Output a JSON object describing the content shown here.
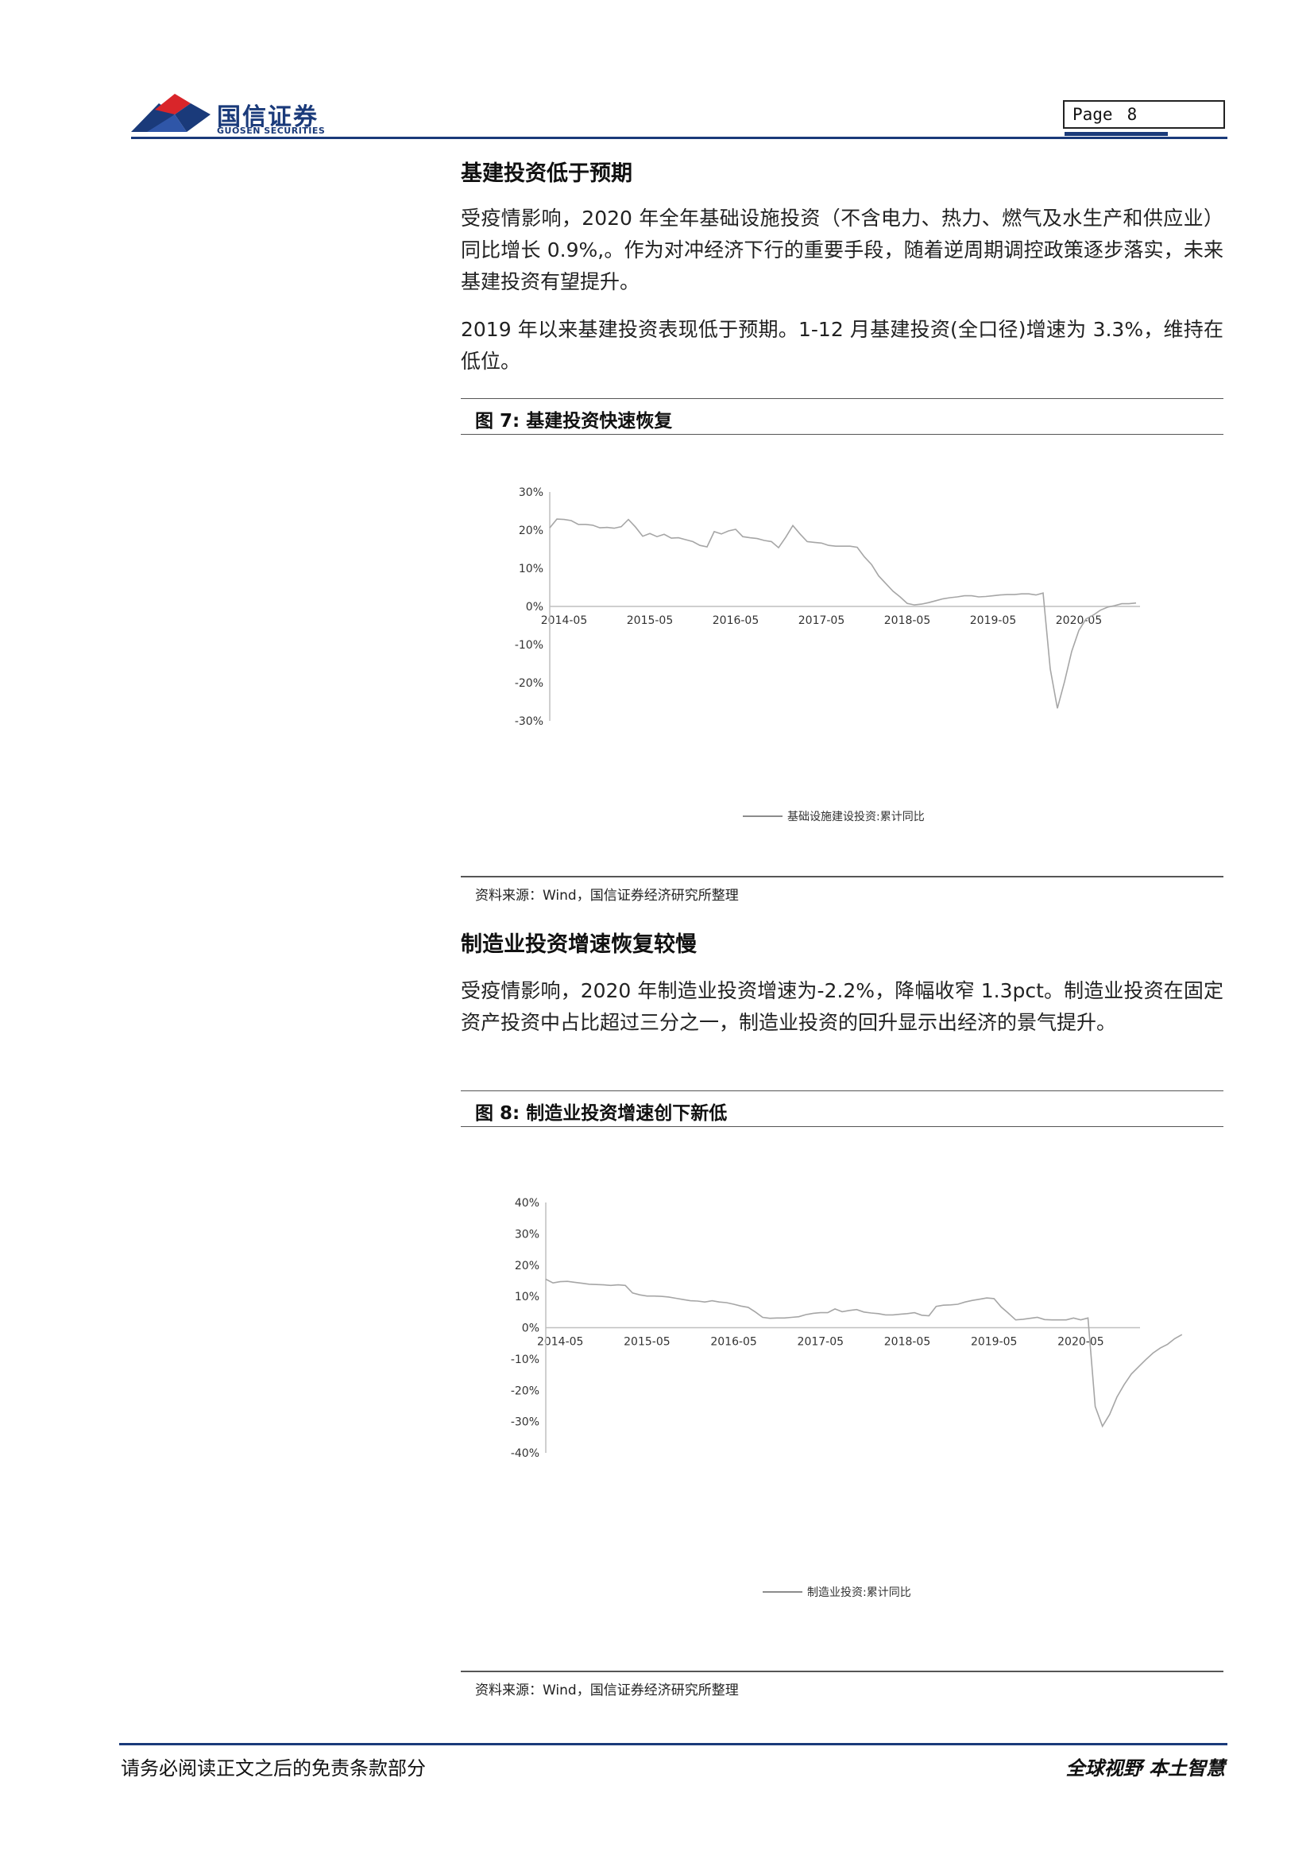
{
  "header": {
    "logo_cn": "国信证券",
    "logo_en": "GUOSEN SECURITIES",
    "page_label": "Page",
    "page_number": "8",
    "colors": {
      "brand_blue": "#1a3a7a",
      "brand_red": "#d9252a"
    }
  },
  "section1": {
    "heading": "基建投资低于预期",
    "para1": "受疫情影响，2020 年全年基础设施投资（不含电力、热力、燃气及水生产和供应业）同比增长 0.9%,。作为对冲经济下行的重要手段，随着逆周期调控政策逐步落实，未来基建投资有望提升。",
    "para2": "2019 年以来基建投资表现低于预期。1-12 月基建投资(全口径)增速为 3.3%，维持在低位。"
  },
  "figure7": {
    "title": "图 7:  基建投资快速恢复",
    "source": "资料来源：Wind，国信证券经济研究所整理"
  },
  "section2": {
    "heading": "制造业投资增速恢复较慢",
    "para1": "受疫情影响，2020 年制造业投资增速为-2.2%，降幅收窄 1.3pct。制造业投资在固定资产投资中占比超过三分之一，制造业投资的回升显示出经济的景气提升。"
  },
  "figure8": {
    "title": "图 8:  制造业投资增速创下新低",
    "source": "资料来源：Wind，国信证券经济研究所整理"
  },
  "footer": {
    "left": "请务必阅读正文之后的免责条款部分",
    "right": "全球视野   本土智慧"
  },
  "chart_data": [
    {
      "type": "line",
      "ylim": [
        -30,
        30
      ],
      "yticks": [
        "30%",
        "20%",
        "10%",
        "0%",
        "-10%",
        "-20%",
        "-30%"
      ],
      "ytick_values": [
        30,
        20,
        10,
        0,
        -10,
        -20,
        -30
      ],
      "xticks": [
        "2014-05",
        "2015-05",
        "2016-05",
        "2017-05",
        "2018-05",
        "2019-05",
        "2020-05"
      ],
      "x_start": "2014-03",
      "legend_position": "bottom-right",
      "series": [
        {
          "name": "基础设施建设投资:累计同比",
          "color": "#a6a6a6",
          "values": [
            20.6,
            22.9,
            22.8,
            22.5,
            21.5,
            21.5,
            21.3,
            20.6,
            20.7,
            20.5,
            20.9,
            22.8,
            20.8,
            18.4,
            19.1,
            18.3,
            18.9,
            17.9,
            18.0,
            17.5,
            17.0,
            16.0,
            15.6,
            19.6,
            19.0,
            19.8,
            20.2,
            18.3,
            18.0,
            17.8,
            17.3,
            17.0,
            15.4,
            18.1,
            21.2,
            19.0,
            17.0,
            16.8,
            16.6,
            16.0,
            15.8,
            15.8,
            15.8,
            15.5,
            13.0,
            11.0,
            8.0,
            6.0,
            4.0,
            2.5,
            0.8,
            0.4,
            0.6,
            1.0,
            1.5,
            2.0,
            2.3,
            2.5,
            2.8,
            2.8,
            2.5,
            2.6,
            2.8,
            3.0,
            3.1,
            3.1,
            3.3,
            3.3,
            3.0,
            3.5,
            -16.4,
            -26.7,
            -19.7,
            -11.8,
            -6.3,
            -3.3,
            -2.3,
            -1.0,
            -0.2,
            0.2,
            0.7,
            0.7,
            0.9
          ]
        }
      ]
    },
    {
      "type": "line",
      "ylim": [
        -40,
        40
      ],
      "yticks": [
        "40%",
        "30%",
        "20%",
        "10%",
        "0%",
        "-10%",
        "-20%",
        "-30%",
        "-40%"
      ],
      "ytick_values": [
        40,
        30,
        20,
        10,
        0,
        -10,
        -20,
        -30,
        -40
      ],
      "xticks": [
        "2014-05",
        "2015-05",
        "2016-05",
        "2017-05",
        "2018-05",
        "2019-05",
        "2020-05"
      ],
      "x_start": "2014-03",
      "legend_position": "bottom-center",
      "series": [
        {
          "name": "制造业投资:累计同比",
          "color": "#a6a6a6",
          "values": [
            15.5,
            14.3,
            14.7,
            14.8,
            14.5,
            14.2,
            13.9,
            13.8,
            13.7,
            13.5,
            13.7,
            13.5,
            11.1,
            10.5,
            10.1,
            10.1,
            10.0,
            9.8,
            9.4,
            9.0,
            8.6,
            8.5,
            8.2,
            8.6,
            8.2,
            8.0,
            7.5,
            6.9,
            6.5,
            5.0,
            3.3,
            3.0,
            3.1,
            3.1,
            3.3,
            3.5,
            4.2,
            4.6,
            4.8,
            4.8,
            6.0,
            5.1,
            5.5,
            5.8,
            5.0,
            4.7,
            4.5,
            4.1,
            4.1,
            4.3,
            4.5,
            4.8,
            4.0,
            3.8,
            6.8,
            7.2,
            7.3,
            7.5,
            8.2,
            8.7,
            9.1,
            9.5,
            9.3,
            6.6,
            4.6,
            2.5,
            2.7,
            3.0,
            3.3,
            2.6,
            2.5,
            2.5,
            2.5,
            3.1,
            2.5,
            3.1,
            -25.2,
            -31.5,
            -27.7,
            -22.2,
            -18.2,
            -14.8,
            -12.5,
            -10.2,
            -8.1,
            -6.5,
            -5.3,
            -3.5,
            -2.2
          ]
        }
      ]
    }
  ]
}
